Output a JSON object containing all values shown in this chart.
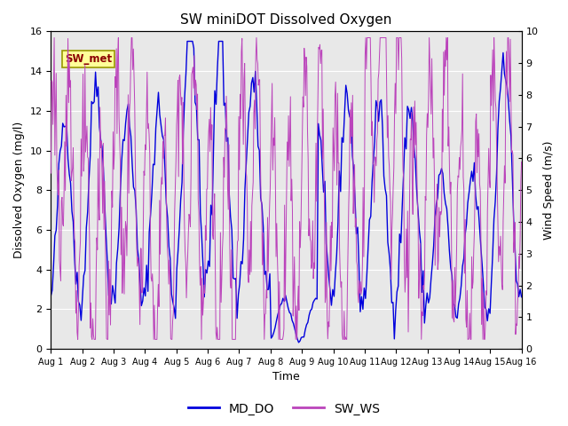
{
  "title": "SW miniDOT Dissolved Oxygen",
  "xlabel": "Time",
  "ylabel_left": "Dissolved Oxygen (mg/l)",
  "ylabel_right": "Wind Speed (m/s)",
  "ylim_left": [
    0,
    16
  ],
  "ylim_right": [
    0.0,
    10.0
  ],
  "yticks_left": [
    0,
    2,
    4,
    6,
    8,
    10,
    12,
    14,
    16
  ],
  "yticks_right": [
    0.0,
    1.0,
    2.0,
    3.0,
    4.0,
    5.0,
    6.0,
    7.0,
    8.0,
    9.0,
    10.0
  ],
  "xtick_labels": [
    "Aug 1",
    "Aug 2",
    "Aug 3",
    "Aug 4",
    "Aug 5",
    "Aug 6",
    "Aug 7",
    "Aug 8",
    "Aug 9",
    "Aug 10",
    "Aug 11",
    "Aug 12",
    "Aug 13",
    "Aug 14",
    "Aug 15",
    "Aug 16"
  ],
  "color_do": "#0000dd",
  "color_ws": "#bb44bb",
  "legend_items": [
    "MD_DO",
    "SW_WS"
  ],
  "legend_line_colors": [
    "#0000dd",
    "#bb44bb"
  ],
  "annotation_text": "SW_met",
  "plot_bg_color": "#e8e8e8",
  "n_days": 15,
  "seed": 42
}
